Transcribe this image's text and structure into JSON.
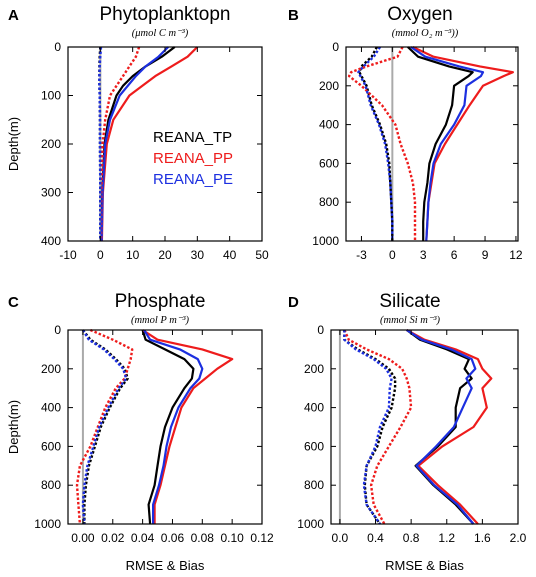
{
  "colors": {
    "TP": "#000000",
    "PP": "#ee1c1c",
    "PE": "#1c2fe0",
    "zero": "#aaaaaa"
  },
  "legend": [
    {
      "key": "TP",
      "label": "REANA_TP"
    },
    {
      "key": "PP",
      "label": "REANA_PP"
    },
    {
      "key": "PE",
      "label": "REANA_PE"
    }
  ],
  "chart_data": [
    {
      "type": "line",
      "panel": "A",
      "title": "Phytoplanktopn",
      "unit": "(μmol C m⁻³)",
      "ylabel": "Depth(m)",
      "xlabel": "",
      "xlim": [
        -10,
        50
      ],
      "ylim": [
        400,
        0
      ],
      "xticks": [
        "-10",
        "0",
        "10",
        "20",
        "30",
        "40",
        "50"
      ],
      "yticks": [
        "0",
        "100",
        "200",
        "300",
        "400"
      ],
      "depth": [
        0,
        20,
        40,
        60,
        80,
        100,
        150,
        200,
        300,
        400
      ],
      "series": [
        {
          "name": "REANA_TP",
          "key": "TP",
          "metric": "RMSE",
          "values": [
            23,
            19,
            14,
            10,
            7,
            5,
            2.5,
            1.3,
            0.6,
            0.4
          ]
        },
        {
          "name": "REANA_PP",
          "key": "PP",
          "metric": "RMSE",
          "values": [
            30,
            27,
            22,
            17,
            13,
            9,
            4,
            2,
            0.8,
            0.5
          ]
        },
        {
          "name": "REANA_PE",
          "key": "PE",
          "metric": "RMSE",
          "values": [
            21,
            18,
            14,
            11,
            8.5,
            6,
            3,
            1.5,
            0.7,
            0.4
          ]
        },
        {
          "name": "REANA_TP",
          "key": "TP",
          "metric": "Bias",
          "values": [
            0,
            -0.2,
            -0.3,
            -0.3,
            -0.3,
            -0.2,
            -0.1,
            -0.1,
            0,
            0
          ]
        },
        {
          "name": "REANA_PP",
          "key": "PP",
          "metric": "Bias",
          "values": [
            12,
            11,
            9,
            7,
            5,
            3,
            1.5,
            0.7,
            0.3,
            0.2
          ]
        },
        {
          "name": "REANA_PE",
          "key": "PE",
          "metric": "Bias",
          "values": [
            0.2,
            0,
            -0.2,
            -0.3,
            -0.3,
            -0.2,
            -0.1,
            -0.1,
            0,
            0
          ]
        }
      ]
    },
    {
      "type": "line",
      "panel": "B",
      "title": "Oxygen",
      "unit": "(mmol O₂ m⁻³))",
      "ylabel": "",
      "xlabel": "",
      "xlim": [
        -4.5,
        12.2
      ],
      "ylim": [
        1000,
        0
      ],
      "xticks": [
        "-3",
        "0",
        "3",
        "6",
        "9",
        "12"
      ],
      "yticks": [
        "0",
        "200",
        "400",
        "600",
        "800",
        "1000"
      ],
      "depth": [
        0,
        50,
        100,
        130,
        150,
        200,
        300,
        400,
        500,
        600,
        700,
        800,
        900,
        1000
      ],
      "series": [
        {
          "name": "REANA_TP",
          "key": "TP",
          "metric": "RMSE",
          "values": [
            1.5,
            2.5,
            5.5,
            7.8,
            7.4,
            6,
            5.8,
            5.2,
            4.2,
            3.6,
            3.4,
            3.1,
            3.0,
            3.0
          ]
        },
        {
          "name": "REANA_PP",
          "key": "PP",
          "metric": "RMSE",
          "values": [
            2.0,
            4.0,
            8.5,
            11.7,
            10.8,
            8.8,
            7.5,
            6.3,
            5.1,
            4.1,
            3.8,
            3.5,
            3.4,
            3.3
          ]
        },
        {
          "name": "REANA_PE",
          "key": "PE",
          "metric": "RMSE",
          "values": [
            1.8,
            3.2,
            6.5,
            8.8,
            8.6,
            7.2,
            7.0,
            6.0,
            4.7,
            4.0,
            3.7,
            3.5,
            3.4,
            3.3
          ]
        },
        {
          "name": "REANA_TP",
          "key": "TP",
          "metric": "Bias",
          "values": [
            -1.5,
            -2.0,
            -3.0,
            -3.2,
            -3.0,
            -2.5,
            -2.0,
            -1.2,
            -0.6,
            -0.3,
            -0.2,
            -0.1,
            0,
            0
          ]
        },
        {
          "name": "REANA_PP",
          "key": "PP",
          "metric": "Bias",
          "values": [
            1.0,
            0.5,
            -2.5,
            -4.0,
            -4.2,
            -3.0,
            -1.0,
            0.3,
            0.8,
            1.5,
            2.0,
            2.2,
            2.2,
            2.2
          ]
        },
        {
          "name": "REANA_PE",
          "key": "PE",
          "metric": "Bias",
          "values": [
            -1.2,
            -1.8,
            -2.8,
            -3.3,
            -3.1,
            -2.6,
            -2.1,
            -1.3,
            -0.7,
            -0.4,
            -0.2,
            -0.1,
            0,
            0
          ]
        }
      ]
    },
    {
      "type": "line",
      "panel": "C",
      "title": "Phosphate",
      "unit": "(mmol P m⁻³)",
      "ylabel": "Depth(m)",
      "xlabel": "RMSE & Bias",
      "xlim": [
        -0.01,
        0.12
      ],
      "ylim": [
        1000,
        0
      ],
      "xticks": [
        "0.00",
        "0.02",
        "0.04",
        "0.06",
        "0.08",
        "0.10",
        "0.12"
      ],
      "yticks": [
        "0",
        "200",
        "400",
        "600",
        "800",
        "1000"
      ],
      "depth": [
        0,
        50,
        100,
        150,
        200,
        250,
        300,
        400,
        500,
        600,
        700,
        800,
        900,
        1000
      ],
      "series": [
        {
          "name": "REANA_TP",
          "key": "TP",
          "metric": "RMSE",
          "values": [
            0.04,
            0.042,
            0.055,
            0.068,
            0.074,
            0.073,
            0.068,
            0.06,
            0.055,
            0.052,
            0.05,
            0.048,
            0.044,
            0.045
          ]
        },
        {
          "name": "REANA_PP",
          "key": "PP",
          "metric": "RMSE",
          "values": [
            0.04,
            0.05,
            0.08,
            0.1,
            0.09,
            0.082,
            0.074,
            0.066,
            0.062,
            0.058,
            0.055,
            0.052,
            0.048,
            0.048
          ]
        },
        {
          "name": "REANA_PE",
          "key": "PE",
          "metric": "RMSE",
          "values": [
            0.041,
            0.045,
            0.065,
            0.077,
            0.08,
            0.078,
            0.072,
            0.064,
            0.059,
            0.056,
            0.054,
            0.051,
            0.047,
            0.047
          ]
        },
        {
          "name": "REANA_TP",
          "key": "TP",
          "metric": "Bias",
          "values": [
            0.0,
            0.005,
            0.015,
            0.022,
            0.028,
            0.03,
            0.025,
            0.018,
            0.012,
            0.008,
            0.004,
            0.002,
            0.001,
            0.001
          ]
        },
        {
          "name": "REANA_PP",
          "key": "PP",
          "metric": "Bias",
          "values": [
            0.005,
            0.02,
            0.033,
            0.032,
            0.03,
            0.028,
            0.022,
            0.015,
            0.01,
            0.005,
            -0.002,
            -0.004,
            -0.003,
            -0.002
          ]
        },
        {
          "name": "REANA_PE",
          "key": "PE",
          "metric": "Bias",
          "values": [
            0.0,
            0.004,
            0.014,
            0.021,
            0.027,
            0.029,
            0.024,
            0.017,
            0.011,
            0.007,
            0.003,
            0.001,
            0.0,
            0.001
          ]
        }
      ]
    },
    {
      "type": "line",
      "panel": "D",
      "title": "Silicate",
      "unit": "(mmol Si m⁻³)",
      "ylabel": "",
      "xlabel": "RMSE & Bias",
      "xlim": [
        -0.1,
        2.0
      ],
      "ylim": [
        1000,
        0
      ],
      "xticks": [
        "0.0",
        "0.4",
        "0.8",
        "1.2",
        "1.6",
        "2.0"
      ],
      "yticks": [
        "0",
        "200",
        "400",
        "600",
        "800",
        "1000"
      ],
      "depth": [
        0,
        50,
        100,
        150,
        200,
        250,
        300,
        400,
        500,
        600,
        700,
        800,
        900,
        1000
      ],
      "series": [
        {
          "name": "REANA_TP",
          "key": "TP",
          "metric": "RMSE",
          "values": [
            0.75,
            0.9,
            1.2,
            1.45,
            1.4,
            1.48,
            1.35,
            1.3,
            1.3,
            1.1,
            0.85,
            1.05,
            1.3,
            1.5
          ]
        },
        {
          "name": "REANA_PP",
          "key": "PP",
          "metric": "RMSE",
          "values": [
            0.75,
            0.95,
            1.3,
            1.55,
            1.6,
            1.7,
            1.6,
            1.65,
            1.5,
            1.15,
            0.88,
            1.1,
            1.35,
            1.55
          ]
        },
        {
          "name": "REANA_PE",
          "key": "PE",
          "metric": "RMSE",
          "values": [
            0.75,
            0.92,
            1.25,
            1.48,
            1.52,
            1.42,
            1.48,
            1.38,
            1.28,
            1.08,
            0.86,
            1.06,
            1.32,
            1.5
          ]
        },
        {
          "name": "REANA_TP",
          "key": "TP",
          "metric": "Bias",
          "values": [
            0.05,
            0.05,
            0.2,
            0.4,
            0.55,
            0.62,
            0.62,
            0.58,
            0.48,
            0.42,
            0.3,
            0.28,
            0.3,
            0.45
          ]
        },
        {
          "name": "REANA_PP",
          "key": "PP",
          "metric": "Bias",
          "values": [
            0.05,
            0.1,
            0.3,
            0.55,
            0.7,
            0.75,
            0.78,
            0.8,
            0.68,
            0.55,
            0.42,
            0.35,
            0.38,
            0.5
          ]
        },
        {
          "name": "REANA_PE",
          "key": "PE",
          "metric": "Bias",
          "values": [
            0.05,
            0.05,
            0.18,
            0.38,
            0.52,
            0.58,
            0.56,
            0.55,
            0.45,
            0.4,
            0.3,
            0.27,
            0.3,
            0.45
          ]
        }
      ]
    }
  ]
}
